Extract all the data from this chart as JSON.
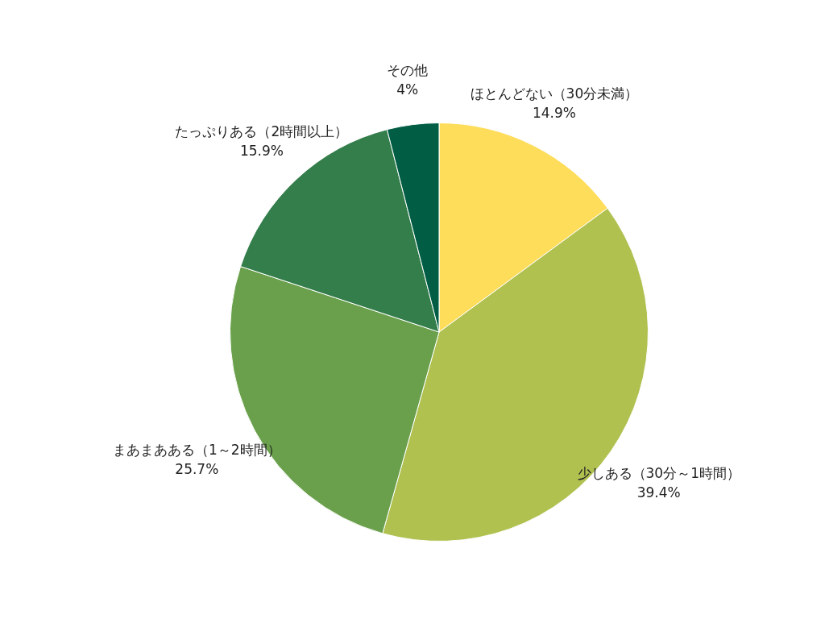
{
  "chart_data": {
    "type": "pie",
    "categories": [
      "ほとんどない（30分未満）",
      "少しある（30分～1時間）",
      "まあまあある（1～2時間）",
      "たっぷりある（2時間以上）",
      "その他"
    ],
    "values": [
      14.9,
      39.4,
      25.7,
      15.9,
      4
    ],
    "colors": [
      "#fedd5b",
      "#b0c150",
      "#6aa04b",
      "#347e4b",
      "#015e45"
    ],
    "value_labels": [
      "14.9%",
      "39.4%",
      "25.7%",
      "15.9%",
      "4%"
    ],
    "legend": false
  }
}
